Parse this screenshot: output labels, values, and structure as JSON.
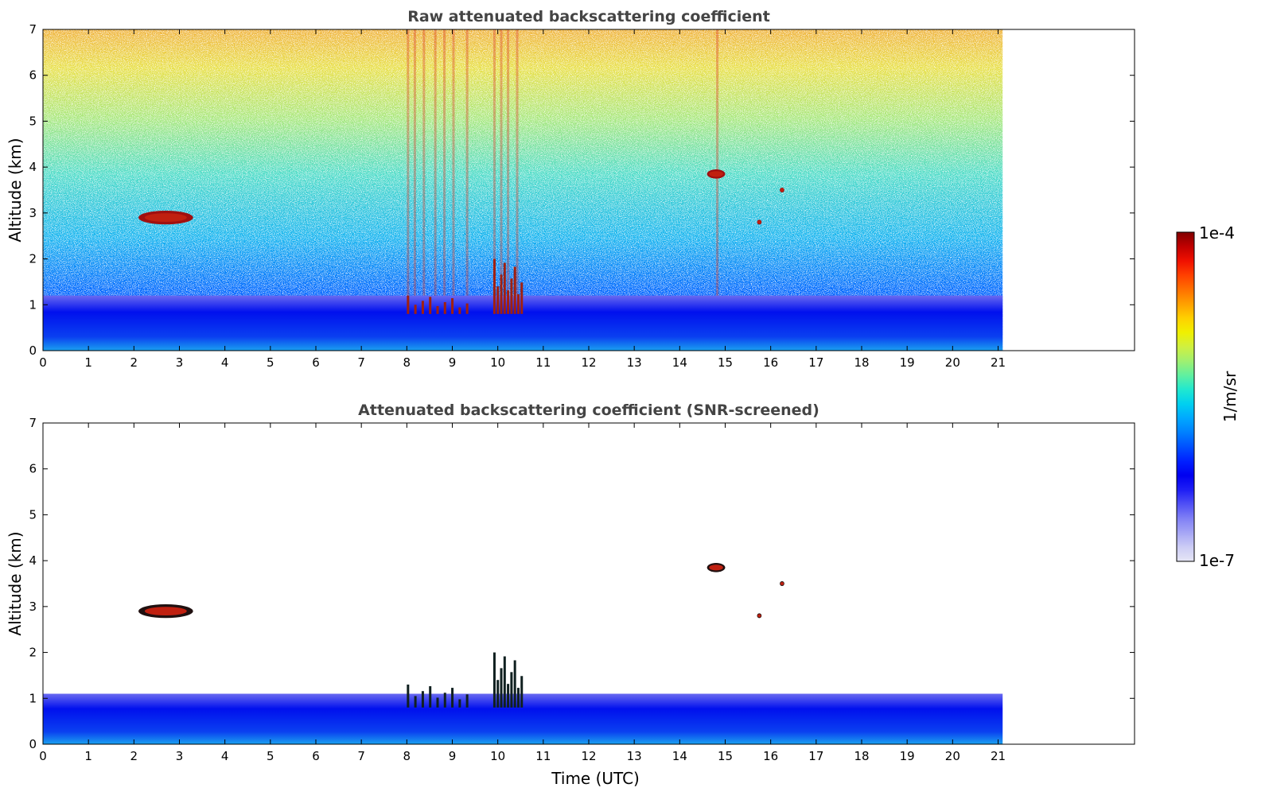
{
  "chart_data": [
    {
      "type": "heatmap",
      "title": "Raw attenuated backscattering coefficient",
      "xlabel": "",
      "ylabel": "Altitude (km)",
      "xlim": [
        0,
        24
      ],
      "ylim": [
        0,
        7
      ],
      "x_ticks": [
        0,
        1,
        2,
        3,
        4,
        5,
        6,
        7,
        8,
        9,
        10,
        11,
        12,
        13,
        14,
        15,
        16,
        17,
        18,
        19,
        20,
        21
      ],
      "y_ticks": [
        0,
        1,
        2,
        3,
        4,
        5,
        6,
        7
      ],
      "data_end_time": 21.1,
      "features": [
        {
          "kind": "boundary_layer",
          "time": [
            0,
            21.1
          ],
          "altitude": [
            0,
            1.2
          ]
        },
        {
          "kind": "cloud",
          "time": [
            2.1,
            3.3
          ],
          "altitude": [
            2.75,
            3.05
          ]
        },
        {
          "kind": "cloud",
          "time": [
            14.6,
            15.0
          ],
          "altitude": [
            3.75,
            3.95
          ]
        },
        {
          "kind": "cloud",
          "time": [
            16.2,
            16.3
          ],
          "altitude": [
            3.45,
            3.55
          ]
        },
        {
          "kind": "cloud",
          "time": [
            15.7,
            15.8
          ],
          "altitude": [
            2.75,
            2.85
          ]
        },
        {
          "kind": "low_cloud",
          "time": [
            8.0,
            9.3
          ],
          "altitude": [
            0.8,
            1.2
          ]
        },
        {
          "kind": "low_cloud",
          "time": [
            9.9,
            10.5
          ],
          "altitude": [
            0.8,
            2.0
          ]
        }
      ]
    },
    {
      "type": "heatmap",
      "title": "Attenuated backscattering coefficient (SNR-screened)",
      "xlabel": "Time (UTC)",
      "ylabel": "Altitude (km)",
      "xlim": [
        0,
        24
      ],
      "ylim": [
        0,
        7
      ],
      "x_ticks": [
        0,
        1,
        2,
        3,
        4,
        5,
        6,
        7,
        8,
        9,
        10,
        11,
        12,
        13,
        14,
        15,
        16,
        17,
        18,
        19,
        20,
        21
      ],
      "y_ticks": [
        0,
        1,
        2,
        3,
        4,
        5,
        6,
        7
      ],
      "data_end_time": 21.1,
      "features": [
        {
          "kind": "boundary_layer",
          "time": [
            0,
            21.1
          ],
          "altitude": [
            0,
            1.1
          ]
        },
        {
          "kind": "cloud",
          "time": [
            2.1,
            3.3
          ],
          "altitude": [
            2.75,
            3.05
          ]
        },
        {
          "kind": "cloud",
          "time": [
            14.6,
            15.0
          ],
          "altitude": [
            3.75,
            3.95
          ]
        },
        {
          "kind": "cloud",
          "time": [
            16.2,
            16.3
          ],
          "altitude": [
            3.45,
            3.55
          ]
        },
        {
          "kind": "cloud",
          "time": [
            15.7,
            15.8
          ],
          "altitude": [
            2.75,
            2.85
          ]
        },
        {
          "kind": "low_cloud",
          "time": [
            8.0,
            9.3
          ],
          "altitude": [
            0.8,
            1.3
          ]
        },
        {
          "kind": "low_cloud",
          "time": [
            9.9,
            10.5
          ],
          "altitude": [
            0.8,
            2.0
          ]
        }
      ]
    }
  ],
  "colorbar": {
    "label": "1/m/sr",
    "max_label": "1e-4",
    "min_label": "1e-7",
    "colors": [
      "#e6e6f5",
      "#ccccf5",
      "#a6a6f5",
      "#8080f5",
      "#5050f5",
      "#1e1ef5",
      "#0000f0",
      "#0020ff",
      "#0050ff",
      "#0080ff",
      "#00a8ff",
      "#00d0f0",
      "#20e8d0",
      "#60f0a0",
      "#a0f070",
      "#d0f040",
      "#f0f000",
      "#ffd000",
      "#ffa000",
      "#ff7000",
      "#ff4000",
      "#f01000",
      "#c00000",
      "#800000"
    ]
  }
}
